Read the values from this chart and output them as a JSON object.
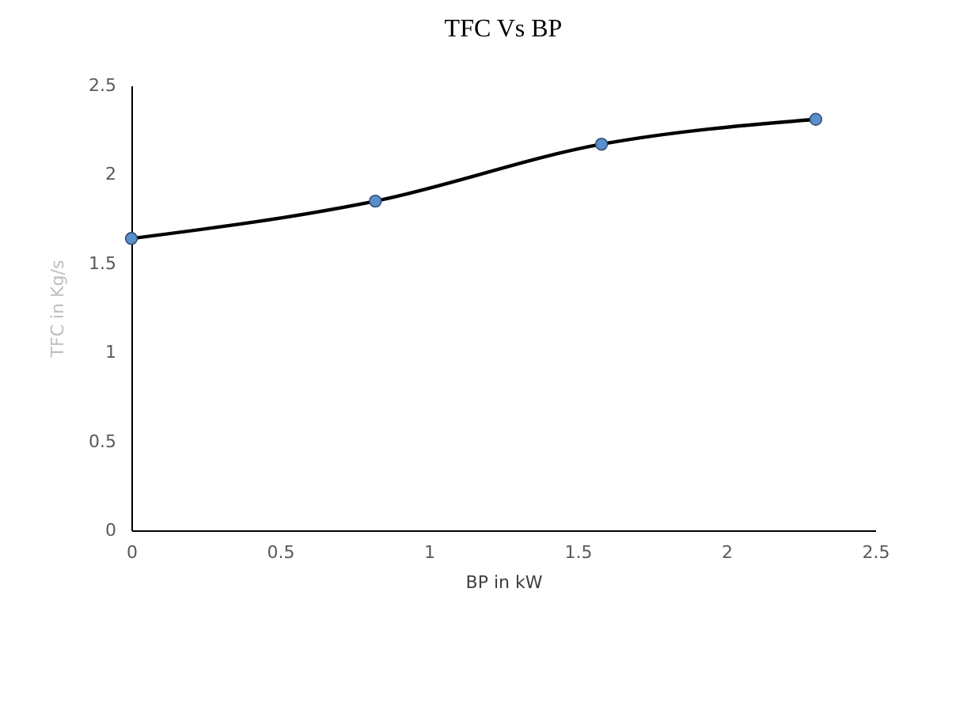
{
  "chart_data": {
    "type": "line",
    "title": "TFC Vs BP",
    "xlabel": "BP in kW",
    "ylabel": "TFC in Kg/s",
    "x": [
      0,
      0.82,
      1.58,
      2.3
    ],
    "series": [
      {
        "color": "#000000",
        "values": [
          1.64,
          1.85,
          2.17,
          2.31
        ]
      }
    ],
    "xlim": [
      0,
      2.5
    ],
    "xticks": [
      0,
      0.5,
      1,
      1.5,
      2,
      2.5
    ],
    "ylim": [
      0,
      2.5
    ],
    "yticks": [
      0,
      0.5,
      1,
      1.5,
      2,
      2.5
    ],
    "marker": "circle",
    "line_style": "solid",
    "grid": false,
    "legend": false
  }
}
